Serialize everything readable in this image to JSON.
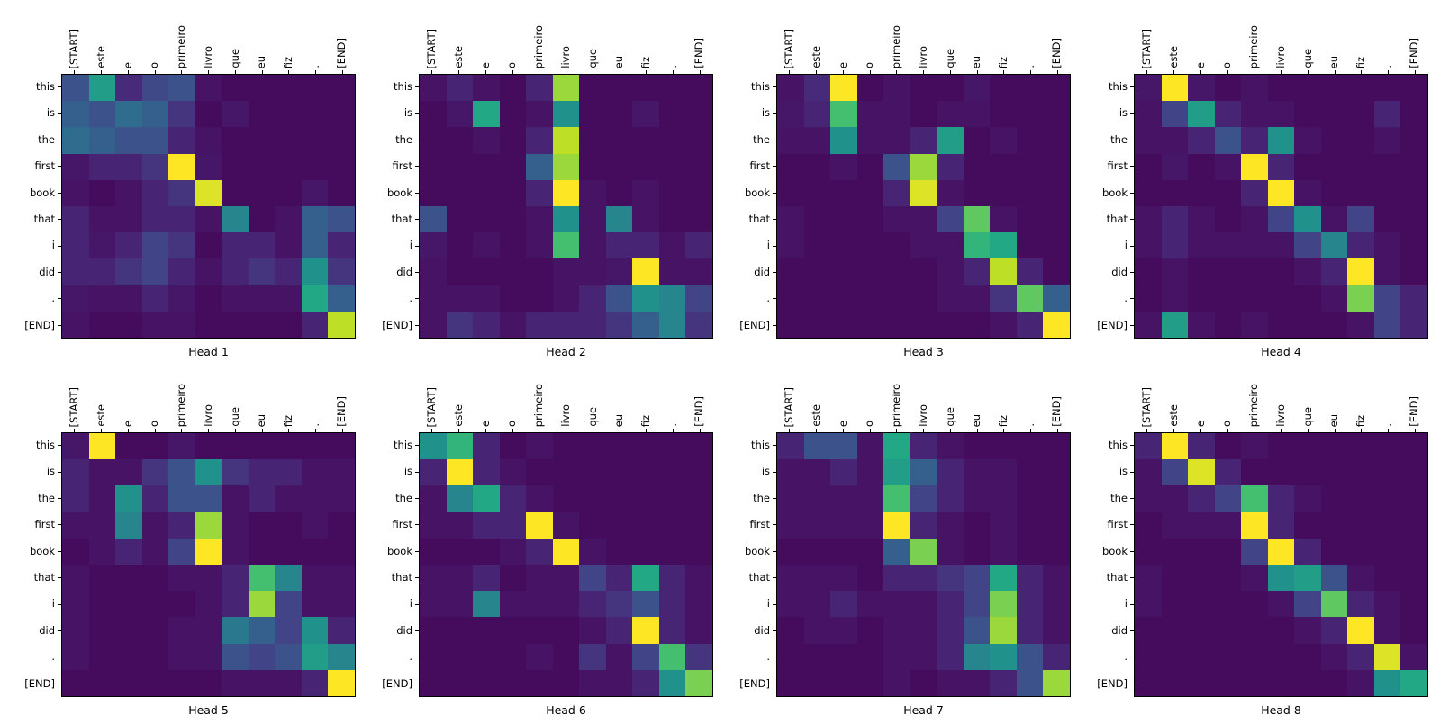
{
  "figure": {
    "background": "#ffffff",
    "text_color": "#000000",
    "colormap": "viridis",
    "colormap_stops": [
      {
        "t": 0.0,
        "hex": "#440154"
      },
      {
        "t": 0.1,
        "hex": "#482475"
      },
      {
        "t": 0.2,
        "hex": "#414487"
      },
      {
        "t": 0.3,
        "hex": "#355f8d"
      },
      {
        "t": 0.4,
        "hex": "#2a788e"
      },
      {
        "t": 0.5,
        "hex": "#21918c"
      },
      {
        "t": 0.6,
        "hex": "#22a884"
      },
      {
        "t": 0.7,
        "hex": "#44bf70"
      },
      {
        "t": 0.8,
        "hex": "#7ad151"
      },
      {
        "t": 0.9,
        "hex": "#bddf26"
      },
      {
        "t": 1.0,
        "hex": "#fde725"
      }
    ]
  },
  "chart_data": {
    "type": "heatmap",
    "layout": {
      "grid_rows": 2,
      "grid_cols": 4,
      "x_labels_position": "top",
      "x_labels_rotation": 90,
      "title_position": "bottom"
    },
    "vmin": 0,
    "vmax": 1,
    "x_tokens": [
      "[START]",
      "este",
      "e",
      "o",
      "primeiro",
      "livro",
      "que",
      "eu",
      "fiz",
      ".",
      "[END]"
    ],
    "y_tokens": [
      "this",
      "is",
      "the",
      "first",
      "book",
      "that",
      "i",
      "did",
      ".",
      "[END]"
    ],
    "heads": [
      {
        "title": "Head 1",
        "values": [
          [
            0.25,
            0.55,
            0.12,
            0.22,
            0.25,
            0.05,
            0.03,
            0.03,
            0.03,
            0.03,
            0.03
          ],
          [
            0.3,
            0.25,
            0.35,
            0.3,
            0.15,
            0.03,
            0.06,
            0.03,
            0.03,
            0.03,
            0.03
          ],
          [
            0.35,
            0.3,
            0.25,
            0.25,
            0.1,
            0.05,
            0.03,
            0.03,
            0.03,
            0.03,
            0.03
          ],
          [
            0.06,
            0.1,
            0.1,
            0.15,
            1.0,
            0.06,
            0.03,
            0.03,
            0.03,
            0.03,
            0.03
          ],
          [
            0.05,
            0.03,
            0.05,
            0.1,
            0.15,
            0.95,
            0.03,
            0.03,
            0.03,
            0.06,
            0.03
          ],
          [
            0.1,
            0.05,
            0.05,
            0.1,
            0.1,
            0.05,
            0.45,
            0.03,
            0.05,
            0.3,
            0.25
          ],
          [
            0.1,
            0.06,
            0.1,
            0.2,
            0.15,
            0.03,
            0.1,
            0.1,
            0.05,
            0.3,
            0.1
          ],
          [
            0.1,
            0.1,
            0.15,
            0.2,
            0.1,
            0.05,
            0.1,
            0.15,
            0.1,
            0.5,
            0.15
          ],
          [
            0.06,
            0.05,
            0.05,
            0.1,
            0.06,
            0.03,
            0.05,
            0.05,
            0.05,
            0.6,
            0.3
          ],
          [
            0.05,
            0.03,
            0.03,
            0.05,
            0.05,
            0.03,
            0.03,
            0.03,
            0.03,
            0.1,
            0.9
          ]
        ]
      },
      {
        "title": "Head 2",
        "values": [
          [
            0.05,
            0.1,
            0.05,
            0.03,
            0.1,
            0.85,
            0.03,
            0.03,
            0.03,
            0.03,
            0.03
          ],
          [
            0.03,
            0.06,
            0.6,
            0.03,
            0.05,
            0.5,
            0.03,
            0.03,
            0.06,
            0.03,
            0.03
          ],
          [
            0.03,
            0.03,
            0.05,
            0.03,
            0.1,
            0.9,
            0.03,
            0.03,
            0.03,
            0.03,
            0.03
          ],
          [
            0.03,
            0.03,
            0.03,
            0.03,
            0.3,
            0.85,
            0.03,
            0.03,
            0.03,
            0.03,
            0.03
          ],
          [
            0.03,
            0.03,
            0.03,
            0.03,
            0.1,
            1.0,
            0.05,
            0.03,
            0.05,
            0.03,
            0.03
          ],
          [
            0.25,
            0.03,
            0.03,
            0.03,
            0.05,
            0.5,
            0.05,
            0.45,
            0.05,
            0.03,
            0.03
          ],
          [
            0.06,
            0.03,
            0.05,
            0.03,
            0.05,
            0.7,
            0.05,
            0.1,
            0.1,
            0.05,
            0.1
          ],
          [
            0.05,
            0.03,
            0.03,
            0.03,
            0.03,
            0.05,
            0.05,
            0.06,
            1.0,
            0.05,
            0.05
          ],
          [
            0.05,
            0.05,
            0.05,
            0.03,
            0.03,
            0.05,
            0.1,
            0.25,
            0.5,
            0.45,
            0.2
          ],
          [
            0.05,
            0.15,
            0.1,
            0.05,
            0.1,
            0.1,
            0.1,
            0.15,
            0.3,
            0.45,
            0.15
          ]
        ]
      },
      {
        "title": "Head 3",
        "values": [
          [
            0.05,
            0.12,
            1.0,
            0.03,
            0.05,
            0.03,
            0.03,
            0.06,
            0.03,
            0.03,
            0.03
          ],
          [
            0.06,
            0.1,
            0.7,
            0.05,
            0.05,
            0.03,
            0.05,
            0.05,
            0.03,
            0.03,
            0.03
          ],
          [
            0.05,
            0.05,
            0.5,
            0.05,
            0.05,
            0.1,
            0.55,
            0.03,
            0.05,
            0.03,
            0.03
          ],
          [
            0.03,
            0.03,
            0.05,
            0.03,
            0.25,
            0.85,
            0.1,
            0.03,
            0.03,
            0.03,
            0.03
          ],
          [
            0.03,
            0.03,
            0.03,
            0.03,
            0.1,
            0.95,
            0.05,
            0.03,
            0.03,
            0.03,
            0.03
          ],
          [
            0.05,
            0.03,
            0.03,
            0.03,
            0.05,
            0.05,
            0.2,
            0.75,
            0.05,
            0.03,
            0.03
          ],
          [
            0.05,
            0.03,
            0.03,
            0.03,
            0.03,
            0.05,
            0.05,
            0.65,
            0.6,
            0.03,
            0.03
          ],
          [
            0.03,
            0.03,
            0.03,
            0.03,
            0.03,
            0.03,
            0.05,
            0.1,
            0.9,
            0.1,
            0.03
          ],
          [
            0.03,
            0.03,
            0.03,
            0.03,
            0.03,
            0.03,
            0.05,
            0.05,
            0.15,
            0.75,
            0.3
          ],
          [
            0.03,
            0.03,
            0.03,
            0.03,
            0.03,
            0.03,
            0.03,
            0.03,
            0.05,
            0.1,
            1.0
          ]
        ]
      },
      {
        "title": "Head 4",
        "values": [
          [
            0.06,
            1.0,
            0.06,
            0.03,
            0.05,
            0.03,
            0.03,
            0.03,
            0.03,
            0.03,
            0.03
          ],
          [
            0.05,
            0.2,
            0.55,
            0.1,
            0.05,
            0.05,
            0.03,
            0.03,
            0.03,
            0.1,
            0.03
          ],
          [
            0.05,
            0.05,
            0.1,
            0.25,
            0.1,
            0.5,
            0.05,
            0.03,
            0.03,
            0.05,
            0.03
          ],
          [
            0.03,
            0.06,
            0.03,
            0.05,
            1.0,
            0.1,
            0.03,
            0.03,
            0.03,
            0.03,
            0.03
          ],
          [
            0.03,
            0.03,
            0.03,
            0.03,
            0.1,
            1.0,
            0.05,
            0.03,
            0.03,
            0.03,
            0.03
          ],
          [
            0.05,
            0.1,
            0.05,
            0.03,
            0.05,
            0.2,
            0.5,
            0.05,
            0.2,
            0.03,
            0.03
          ],
          [
            0.05,
            0.1,
            0.05,
            0.05,
            0.05,
            0.05,
            0.2,
            0.45,
            0.1,
            0.05,
            0.03
          ],
          [
            0.03,
            0.05,
            0.03,
            0.03,
            0.03,
            0.03,
            0.05,
            0.1,
            1.0,
            0.05,
            0.03
          ],
          [
            0.03,
            0.05,
            0.03,
            0.03,
            0.03,
            0.03,
            0.03,
            0.05,
            0.8,
            0.2,
            0.1
          ],
          [
            0.05,
            0.55,
            0.05,
            0.03,
            0.05,
            0.03,
            0.03,
            0.03,
            0.05,
            0.2,
            0.1
          ]
        ]
      },
      {
        "title": "Head 5",
        "values": [
          [
            0.06,
            1.0,
            0.03,
            0.03,
            0.06,
            0.03,
            0.03,
            0.03,
            0.03,
            0.03,
            0.03
          ],
          [
            0.1,
            0.05,
            0.05,
            0.15,
            0.25,
            0.5,
            0.15,
            0.1,
            0.1,
            0.05,
            0.05
          ],
          [
            0.1,
            0.05,
            0.5,
            0.1,
            0.25,
            0.25,
            0.05,
            0.1,
            0.05,
            0.05,
            0.05
          ],
          [
            0.05,
            0.05,
            0.45,
            0.05,
            0.1,
            0.85,
            0.05,
            0.03,
            0.03,
            0.05,
            0.03
          ],
          [
            0.03,
            0.05,
            0.1,
            0.05,
            0.2,
            1.0,
            0.05,
            0.03,
            0.03,
            0.03,
            0.03
          ],
          [
            0.05,
            0.03,
            0.03,
            0.03,
            0.05,
            0.05,
            0.1,
            0.7,
            0.45,
            0.05,
            0.05
          ],
          [
            0.05,
            0.03,
            0.03,
            0.03,
            0.03,
            0.05,
            0.1,
            0.85,
            0.2,
            0.05,
            0.05
          ],
          [
            0.05,
            0.03,
            0.03,
            0.03,
            0.05,
            0.05,
            0.4,
            0.3,
            0.2,
            0.5,
            0.1
          ],
          [
            0.05,
            0.03,
            0.03,
            0.03,
            0.05,
            0.05,
            0.25,
            0.2,
            0.25,
            0.55,
            0.45
          ],
          [
            0.03,
            0.03,
            0.03,
            0.03,
            0.03,
            0.03,
            0.05,
            0.05,
            0.05,
            0.1,
            1.0
          ]
        ]
      },
      {
        "title": "Head 6",
        "values": [
          [
            0.5,
            0.65,
            0.1,
            0.03,
            0.05,
            0.03,
            0.03,
            0.03,
            0.03,
            0.03,
            0.03
          ],
          [
            0.1,
            1.0,
            0.1,
            0.05,
            0.03,
            0.03,
            0.03,
            0.03,
            0.03,
            0.03,
            0.03
          ],
          [
            0.05,
            0.45,
            0.6,
            0.1,
            0.05,
            0.03,
            0.03,
            0.03,
            0.03,
            0.03,
            0.03
          ],
          [
            0.05,
            0.05,
            0.1,
            0.1,
            1.0,
            0.05,
            0.03,
            0.03,
            0.03,
            0.03,
            0.03
          ],
          [
            0.03,
            0.03,
            0.03,
            0.05,
            0.1,
            1.0,
            0.05,
            0.03,
            0.03,
            0.03,
            0.03
          ],
          [
            0.05,
            0.05,
            0.1,
            0.03,
            0.05,
            0.05,
            0.2,
            0.1,
            0.6,
            0.1,
            0.05
          ],
          [
            0.05,
            0.05,
            0.45,
            0.05,
            0.05,
            0.05,
            0.1,
            0.15,
            0.25,
            0.1,
            0.05
          ],
          [
            0.03,
            0.03,
            0.03,
            0.03,
            0.03,
            0.03,
            0.05,
            0.1,
            1.0,
            0.1,
            0.05
          ],
          [
            0.03,
            0.03,
            0.03,
            0.03,
            0.05,
            0.03,
            0.15,
            0.05,
            0.2,
            0.7,
            0.15
          ],
          [
            0.03,
            0.03,
            0.03,
            0.03,
            0.03,
            0.03,
            0.05,
            0.05,
            0.1,
            0.5,
            0.8
          ]
        ]
      },
      {
        "title": "Head 7",
        "values": [
          [
            0.1,
            0.25,
            0.25,
            0.05,
            0.6,
            0.1,
            0.05,
            0.03,
            0.03,
            0.03,
            0.03
          ],
          [
            0.05,
            0.05,
            0.1,
            0.05,
            0.55,
            0.3,
            0.1,
            0.05,
            0.05,
            0.03,
            0.03
          ],
          [
            0.05,
            0.05,
            0.05,
            0.05,
            0.7,
            0.2,
            0.1,
            0.05,
            0.05,
            0.03,
            0.03
          ],
          [
            0.05,
            0.05,
            0.05,
            0.05,
            1.0,
            0.1,
            0.05,
            0.03,
            0.05,
            0.03,
            0.03
          ],
          [
            0.03,
            0.03,
            0.03,
            0.03,
            0.3,
            0.8,
            0.05,
            0.03,
            0.05,
            0.03,
            0.03
          ],
          [
            0.05,
            0.05,
            0.05,
            0.03,
            0.1,
            0.1,
            0.15,
            0.2,
            0.6,
            0.1,
            0.05
          ],
          [
            0.05,
            0.05,
            0.1,
            0.05,
            0.05,
            0.05,
            0.1,
            0.2,
            0.8,
            0.1,
            0.05
          ],
          [
            0.03,
            0.05,
            0.05,
            0.03,
            0.05,
            0.05,
            0.1,
            0.25,
            0.85,
            0.1,
            0.05
          ],
          [
            0.03,
            0.03,
            0.03,
            0.03,
            0.05,
            0.05,
            0.1,
            0.45,
            0.5,
            0.25,
            0.1
          ],
          [
            0.03,
            0.03,
            0.03,
            0.03,
            0.05,
            0.03,
            0.05,
            0.05,
            0.1,
            0.25,
            0.85
          ]
        ]
      },
      {
        "title": "Head 8",
        "values": [
          [
            0.1,
            1.0,
            0.1,
            0.03,
            0.05,
            0.03,
            0.03,
            0.03,
            0.03,
            0.03,
            0.03
          ],
          [
            0.05,
            0.2,
            0.95,
            0.1,
            0.03,
            0.03,
            0.03,
            0.03,
            0.03,
            0.03,
            0.03
          ],
          [
            0.05,
            0.05,
            0.1,
            0.2,
            0.7,
            0.1,
            0.05,
            0.03,
            0.03,
            0.03,
            0.03
          ],
          [
            0.03,
            0.05,
            0.05,
            0.05,
            1.0,
            0.1,
            0.03,
            0.03,
            0.03,
            0.03,
            0.03
          ],
          [
            0.03,
            0.03,
            0.03,
            0.03,
            0.2,
            1.0,
            0.1,
            0.03,
            0.03,
            0.03,
            0.03
          ],
          [
            0.05,
            0.03,
            0.03,
            0.03,
            0.05,
            0.5,
            0.55,
            0.25,
            0.05,
            0.03,
            0.03
          ],
          [
            0.05,
            0.03,
            0.03,
            0.03,
            0.03,
            0.05,
            0.2,
            0.75,
            0.1,
            0.05,
            0.03
          ],
          [
            0.03,
            0.03,
            0.03,
            0.03,
            0.03,
            0.03,
            0.05,
            0.1,
            1.0,
            0.05,
            0.03
          ],
          [
            0.03,
            0.03,
            0.03,
            0.03,
            0.03,
            0.03,
            0.03,
            0.05,
            0.1,
            0.95,
            0.05
          ],
          [
            0.03,
            0.03,
            0.03,
            0.03,
            0.03,
            0.03,
            0.03,
            0.03,
            0.05,
            0.5,
            0.6
          ]
        ]
      }
    ]
  }
}
